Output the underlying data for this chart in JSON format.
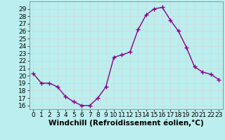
{
  "hours": [
    0,
    1,
    2,
    3,
    4,
    5,
    6,
    7,
    8,
    9,
    10,
    11,
    12,
    13,
    14,
    15,
    16,
    17,
    18,
    19,
    20,
    21,
    22,
    23
  ],
  "values": [
    20.3,
    19.0,
    19.0,
    18.5,
    17.2,
    16.5,
    16.0,
    16.0,
    17.0,
    18.5,
    22.5,
    22.8,
    23.2,
    26.2,
    28.2,
    29.0,
    29.2,
    27.5,
    26.0,
    23.8,
    21.2,
    20.5,
    20.2,
    19.5
  ],
  "line_color": "#880088",
  "marker": "+",
  "marker_size": 4,
  "bg_color": "#bbeeee",
  "grid_color": "#ccdddd",
  "xlabel": "Windchill (Refroidissement éolien,°C)",
  "xlabel_fontsize": 7.5,
  "ylim": [
    15.5,
    30.0
  ],
  "xlim": [
    -0.5,
    23.5
  ],
  "yticks": [
    16,
    17,
    18,
    19,
    20,
    21,
    22,
    23,
    24,
    25,
    26,
    27,
    28,
    29
  ],
  "xticks": [
    0,
    1,
    2,
    3,
    4,
    5,
    6,
    7,
    8,
    9,
    10,
    11,
    12,
    13,
    14,
    15,
    16,
    17,
    18,
    19,
    20,
    21,
    22,
    23
  ],
  "tick_fontsize": 6.5,
  "spine_color": "#888888",
  "linewidth": 1.0
}
